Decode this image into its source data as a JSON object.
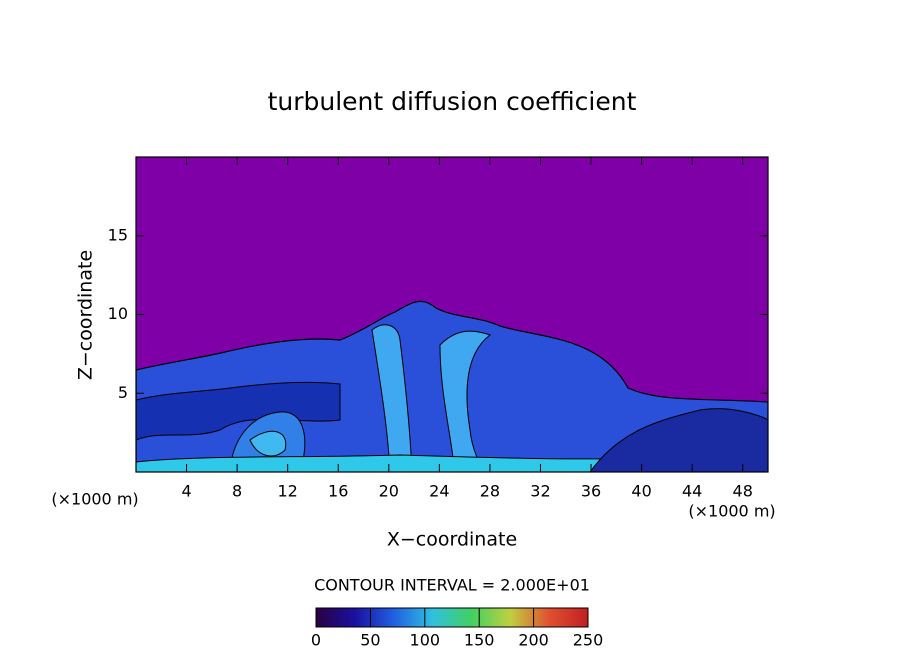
{
  "chart_data": {
    "type": "contour",
    "title": "turbulent diffusion coefficient",
    "x_label": "X−coordinate",
    "y_label": "Z−coordinate",
    "x_unit_left": "(×1000 m)",
    "x_unit_right": "(×1000 m)",
    "xlim": [
      0,
      50
    ],
    "xticks": [
      4,
      8,
      12,
      16,
      20,
      24,
      28,
      32,
      36,
      40,
      44,
      48
    ],
    "ylim": [
      0,
      20
    ],
    "yticks": [
      5,
      10,
      15
    ],
    "background_color": "#8000a8",
    "contour_interval_text": "CONTOUR INTERVAL = 2.000E+01",
    "colorbar": {
      "lim": [
        0,
        250
      ],
      "ticks": [
        0,
        50,
        100,
        150,
        200,
        250
      ],
      "colors": [
        "#2a0040",
        "#1a10a0",
        "#2060e0",
        "#30c0e0",
        "#40d060",
        "#c0d040",
        "#e05030",
        "#c02020"
      ]
    }
  }
}
